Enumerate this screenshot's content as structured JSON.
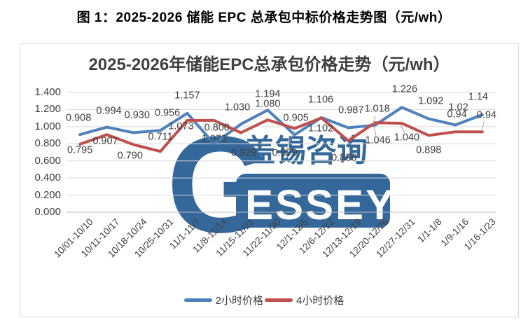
{
  "page": {
    "title": "图 1：2025-2026 储能 EPC 总承包中标价格走势图（元/wh）"
  },
  "chart": {
    "title": "2025-2026年储能EPC总承包价格走势（元/wh）",
    "watermark": {
      "chinese": "盖锡咨询",
      "g": "G",
      "rest": "ESSEY",
      "color": "#34679A"
    }
  },
  "chart_data": {
    "type": "line",
    "title": "2025-2026年储能EPC总承包价格走势（元/wh）",
    "categories": [
      "10/01-10/10",
      "10/11-10/17",
      "10/18-10/24",
      "10/25-10/31",
      "11/1-11/7",
      "11/8-11/14",
      "11/15-11/21",
      "11/22-11/30",
      "12/1-12/5",
      "12/6-12/12",
      "12/13-12/19",
      "12/20-12/26",
      "12/27-12/31",
      "1/1-1/8",
      "1/9-1/16",
      "1/16-1/23"
    ],
    "series": [
      {
        "name": "2小时价格",
        "color": "#4F81BD",
        "values": [
          0.908,
          0.994,
          0.93,
          0.956,
          1.157,
          0.8,
          1.03,
          1.194,
          0.905,
          1.106,
          0.987,
          1.018,
          1.226,
          1.092,
          1.02,
          1.14
        ],
        "labels": [
          "0.908",
          "0.994",
          "0.930",
          "0.956",
          "1.157",
          "0.800",
          "1.030",
          "1.194",
          "0.905",
          "1.106",
          "0.987",
          "1.018",
          "1.226",
          "1.092",
          "1.02",
          "1.14"
        ]
      },
      {
        "name": "4小时价格",
        "color": "#C0504D",
        "values": [
          0.795,
          0.907,
          0.79,
          0.711,
          1.073,
          1.073,
          0.929,
          1.08,
          0.979,
          1.102,
          0.836,
          1.046,
          1.04,
          0.898,
          0.94,
          0.94
        ],
        "labels": [
          "0.795",
          "0.907",
          "0.790",
          "0.711",
          "1.073",
          "1.073",
          "0.929",
          "1.080",
          "0.979",
          "1.102",
          "0.836",
          "1.046",
          "1.040",
          "0.898",
          "0.94",
          "0.94"
        ]
      }
    ],
    "ylim": [
      0,
      1.4
    ],
    "y_ticks": [
      "1.400",
      "1.200",
      "1.000",
      "0.800",
      "0.600",
      "0.400",
      "0.200",
      "0.000"
    ],
    "grid": true,
    "legend_position": "bottom",
    "colors": {
      "gridline": "#D9D9D9",
      "axis_line": "#BFBFBF",
      "tick_text": "#404040",
      "leader_line": "#A6A6A6"
    }
  }
}
